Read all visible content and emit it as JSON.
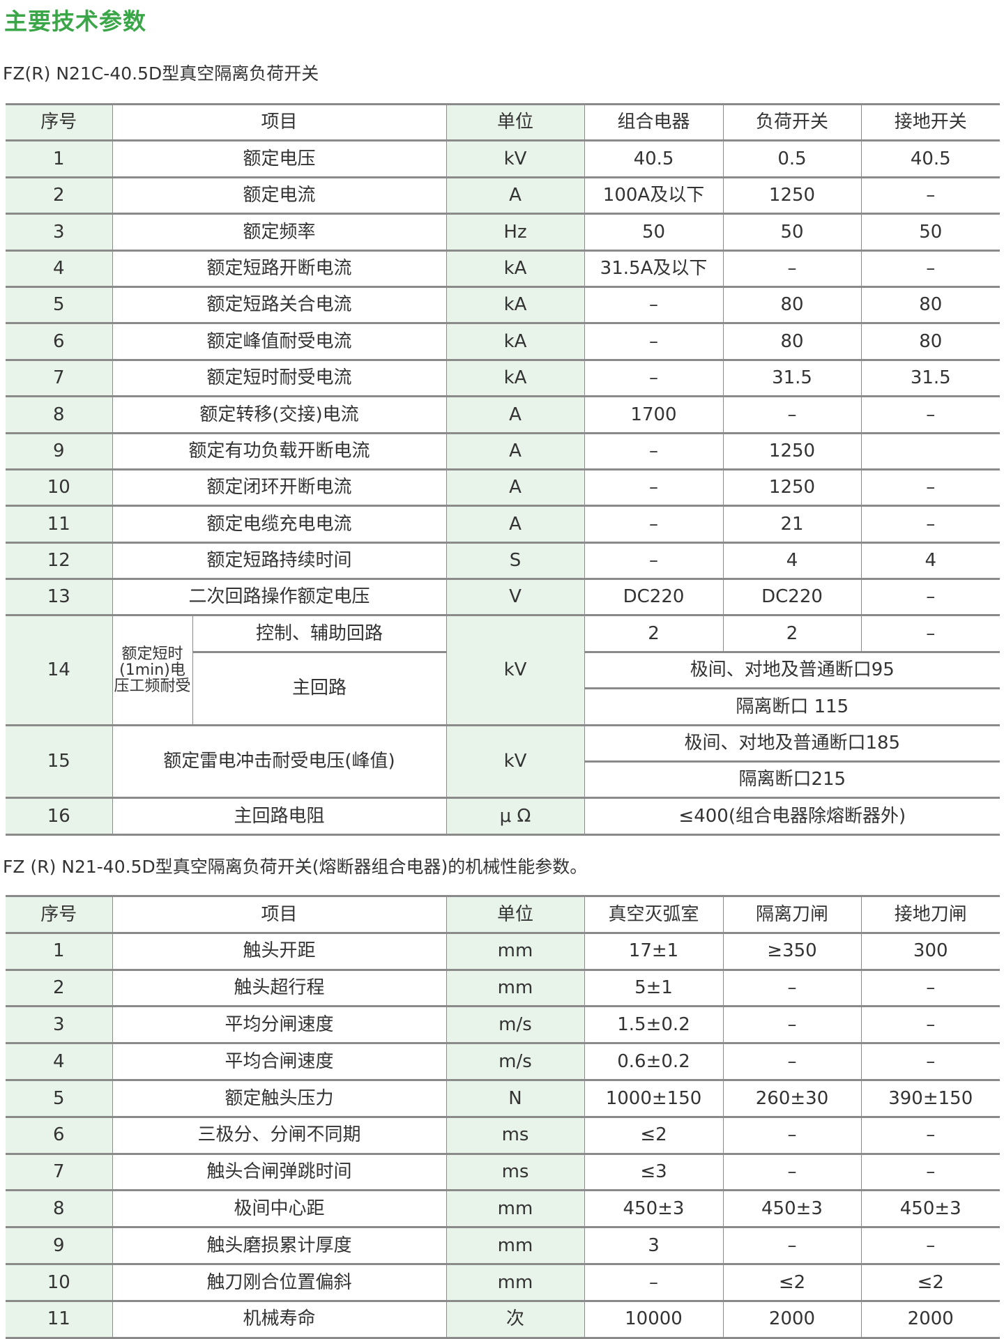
{
  "title": "主要技术参数",
  "table1": {
    "caption": "FZ(R) N21C-40.5D型真空隔离负荷开关",
    "headers": [
      "序号",
      "项目",
      "单位",
      "组合电器",
      "负荷开关",
      "接地开关"
    ],
    "rows": [
      [
        "1",
        "额定电压",
        "kV",
        "40.5",
        "0.5",
        "40.5"
      ],
      [
        "2",
        "额定电流",
        "A",
        "100A及以下",
        "1250",
        "–"
      ],
      [
        "3",
        "额定频率",
        "Hz",
        "50",
        "50",
        "50"
      ],
      [
        "4",
        "额定短路开断电流",
        "kA",
        "31.5A及以下",
        "–",
        "–"
      ],
      [
        "5",
        "额定短路关合电流",
        "kA",
        "–",
        "80",
        "80"
      ],
      [
        "6",
        "额定峰值耐受电流",
        "kA",
        "–",
        "80",
        "80"
      ],
      [
        "7",
        "额定短时耐受电流",
        "kA",
        "–",
        "31.5",
        "31.5"
      ],
      [
        "8",
        "额定转移(交接)电流",
        "A",
        "1700",
        "–",
        "–"
      ],
      [
        "9",
        "额定有功负载开断电流",
        "A",
        "–",
        "1250",
        ""
      ],
      [
        "10",
        "额定闭环开断电流",
        "A",
        "–",
        "1250",
        "–"
      ],
      [
        "11",
        "额定电缆充电电流",
        "A",
        "–",
        "21",
        "–"
      ],
      [
        "12",
        "额定短路持续时间",
        "S",
        "–",
        "4",
        "4"
      ],
      [
        "13",
        "二次回路操作额定电压",
        "V",
        "DC220",
        "DC220",
        "–"
      ]
    ],
    "row14": {
      "no": "14",
      "group": "额定短时(1min)电压工频耐受",
      "sub1": "控制、辅助回路",
      "sub1_values": [
        "2",
        "2",
        "–"
      ],
      "sub2": "主回路",
      "sub2_values": [
        "极间、对地及普通断口95",
        "隔离断口 115"
      ],
      "unit": "kV"
    },
    "row15": {
      "no": "15",
      "item": "额定雷电冲击耐受电压(峰值)",
      "unit": "kV",
      "values": [
        "极间、对地及普通断口185",
        "隔离断口215"
      ]
    },
    "row16": {
      "no": "16",
      "item": "主回路电阻",
      "unit": "μ Ω",
      "value": "≤400(组合电器除熔断器外)"
    }
  },
  "table2": {
    "caption": "FZ (R) N21-40.5D型真空隔离负荷开关(熔断器组合电器)的机械性能参数。",
    "headers": [
      "序号",
      "项目",
      "单位",
      "真空灭弧室",
      "隔离刀闸",
      "接地刀闸"
    ],
    "rows": [
      [
        "1",
        "触头开距",
        "mm",
        "17±1",
        "≥350",
        "300"
      ],
      [
        "2",
        "触头超行程",
        "mm",
        "5±1",
        "–",
        "–"
      ],
      [
        "3",
        "平均分闸速度",
        "m/s",
        "1.5±0.2",
        "–",
        "–"
      ],
      [
        "4",
        "平均合闸速度",
        "m/s",
        "0.6±0.2",
        "–",
        "–"
      ],
      [
        "5",
        "额定触头压力",
        "N",
        "1000±150",
        "260±30",
        "390±150"
      ],
      [
        "6",
        "三极分、分闸不同期",
        "ms",
        "≤2",
        "–",
        "–"
      ],
      [
        "7",
        "触头合闸弹跳时间",
        "ms",
        "≤3",
        "–",
        "–"
      ],
      [
        "8",
        "极间中心距",
        "mm",
        "450±3",
        "450±3",
        "450±3"
      ],
      [
        "9",
        "触头磨损累计厚度",
        "mm",
        "3",
        "–",
        "–"
      ],
      [
        "10",
        "触刀刚合位置偏斜",
        "mm",
        "–",
        "≤2",
        "≤2"
      ],
      [
        "11",
        "机械寿命",
        "次",
        "10000",
        "2000",
        "2000"
      ]
    ]
  },
  "colors": {
    "title": "#3aa648",
    "shade": "#e8f3ea",
    "border": "#8a8a8a",
    "text": "#333333"
  }
}
